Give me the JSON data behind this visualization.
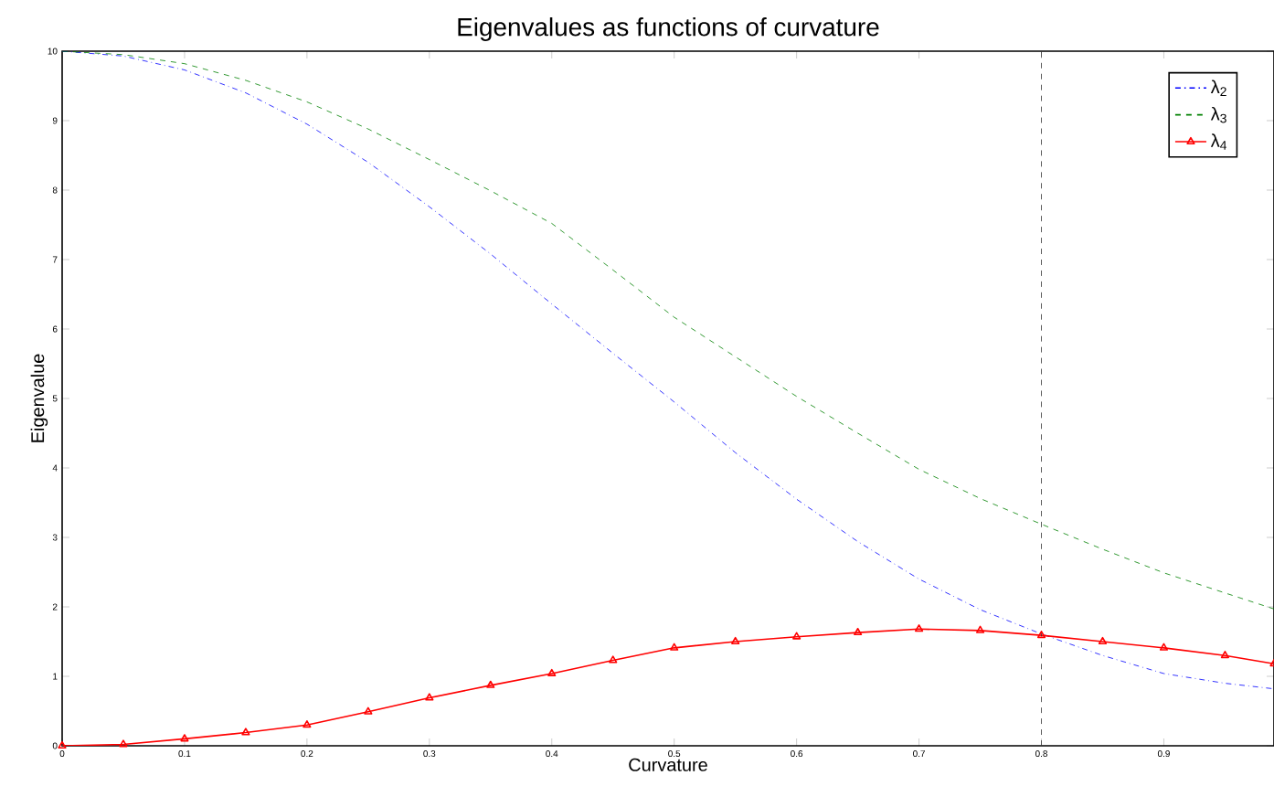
{
  "chart_data": {
    "type": "line",
    "title": "Eigenvalues as functions of curvature",
    "xlabel": "Curvature",
    "ylabel": "Eigenvalue",
    "x": [
      0,
      0.05,
      0.1,
      0.15,
      0.2,
      0.25,
      0.3,
      0.35,
      0.4,
      0.45,
      0.5,
      0.55,
      0.6,
      0.65,
      0.7,
      0.75,
      0.8,
      0.85,
      0.9,
      0.95,
      0.99
    ],
    "series": [
      {
        "name": "λ$_{2}$",
        "color": "#0000ff",
        "line_style": "dashdot",
        "marker": "none",
        "values": [
          10,
          9.93,
          9.73,
          9.4,
          8.95,
          8.4,
          7.76,
          7.08,
          6.36,
          5.65,
          4.95,
          4.22,
          3.55,
          2.94,
          2.4,
          1.96,
          1.61,
          1.3,
          1.04,
          0.9,
          0.82
        ]
      },
      {
        "name": "λ$_{3}$",
        "color": "#008000",
        "line_style": "dashed",
        "marker": "none",
        "values": [
          10,
          9.95,
          9.82,
          9.58,
          9.27,
          8.88,
          8.44,
          7.99,
          7.52,
          6.85,
          6.17,
          5.6,
          5.03,
          4.5,
          3.98,
          3.56,
          3.19,
          2.83,
          2.49,
          2.2,
          1.97
        ]
      },
      {
        "name": "λ$_{4}$",
        "color": "#ff0000",
        "line_style": "solid",
        "marker": "triangle",
        "values": [
          0,
          0.02,
          0.1,
          0.19,
          0.3,
          0.49,
          0.69,
          0.87,
          1.04,
          1.23,
          1.41,
          1.5,
          1.57,
          1.63,
          1.68,
          1.66,
          1.59,
          1.5,
          1.41,
          1.3,
          1.18
        ]
      }
    ],
    "xlim": [
      0,
      0.99
    ],
    "ylim": [
      0,
      10
    ],
    "xticks": [
      0,
      0.1,
      0.2,
      0.3,
      0.4,
      0.5,
      0.6,
      0.7,
      0.8,
      0.9
    ],
    "yticks": [
      0,
      1,
      2,
      3,
      4,
      5,
      6,
      7,
      8,
      9,
      10
    ],
    "ref_lines": [
      {
        "axis": "x",
        "value": 0.8,
        "color": "#333333",
        "line_style": "dashed"
      }
    ],
    "grid": false,
    "legend": "top right"
  }
}
